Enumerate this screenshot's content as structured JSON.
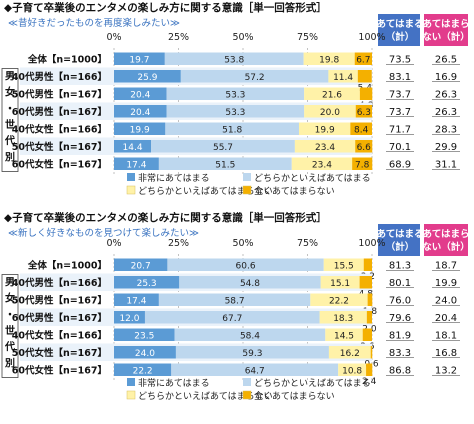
{
  "colors": {
    "very": "#5b9bd5",
    "somewhat": "#bdd7ee",
    "somewhat_not": "#fff2a8",
    "not_at_all": "#f4b000",
    "hdr_blue": "#4472c4",
    "hdr_pink": "#e23c8c",
    "band_alt": "#eaf2fa"
  },
  "chart_data": [
    {
      "type": "bar",
      "orientation": "horizontal",
      "stacked": true,
      "title": "◆子育て卒業後のエンタメの楽しみ方に関する意識［単一回答形式］",
      "subtitle": "≪昔好きだったものを再度楽しみたい≫",
      "x_ticks": [
        "0%",
        "25%",
        "50%",
        "75%",
        "100%"
      ],
      "xlim": [
        0,
        100
      ],
      "group_label": "男女・世代別",
      "categories": [
        "全体【n=1000】",
        "40代男性【n=166】",
        "50代男性【n=167】",
        "60代男性【n=167】",
        "40代女性【n=166】",
        "50代女性【n=167】",
        "60代女性【n=167】"
      ],
      "series": [
        {
          "name": "非常にあてはまる",
          "values": [
            19.7,
            25.9,
            20.4,
            20.4,
            19.9,
            14.4,
            17.4
          ]
        },
        {
          "name": "どちらかといえばあてはまる",
          "values": [
            53.8,
            57.2,
            53.3,
            53.3,
            51.8,
            55.7,
            51.5
          ]
        },
        {
          "name": "どちらかといえばあてはまらない",
          "values": [
            19.8,
            11.4,
            21.6,
            20.0,
            19.9,
            23.4,
            23.4
          ]
        },
        {
          "name": "全くあてはまらない",
          "values": [
            6.7,
            5.4,
            4.8,
            6.3,
            8.4,
            6.6,
            7.8
          ]
        }
      ],
      "sum_headers": [
        "あてはまる（計）",
        "あてはまらない（計）"
      ],
      "sum_pos": [
        73.5,
        83.1,
        73.7,
        73.7,
        71.7,
        70.1,
        68.9
      ],
      "sum_neg": [
        26.5,
        16.9,
        26.3,
        26.3,
        28.3,
        29.9,
        31.1
      ]
    },
    {
      "type": "bar",
      "orientation": "horizontal",
      "stacked": true,
      "title": "◆子育て卒業後のエンタメの楽しみ方に関する意識［単一回答形式］",
      "subtitle": "≪新しく好きなものを見つけて楽しみたい≫",
      "x_ticks": [
        "0%",
        "25%",
        "50%",
        "75%",
        "100%"
      ],
      "xlim": [
        0,
        100
      ],
      "group_label": "男女・世代別",
      "categories": [
        "全体【n=1000】",
        "40代男性【n=166】",
        "50代男性【n=167】",
        "60代男性【n=167】",
        "40代女性【n=166】",
        "50代女性【n=167】",
        "60代女性【n=167】"
      ],
      "series": [
        {
          "name": "非常にあてはまる",
          "values": [
            20.7,
            25.3,
            17.4,
            12.0,
            23.5,
            24.0,
            22.2
          ]
        },
        {
          "name": "どちらかといえばあてはまる",
          "values": [
            60.6,
            54.8,
            58.7,
            67.7,
            58.4,
            59.3,
            64.7
          ]
        },
        {
          "name": "どちらかといえばあてはまらない",
          "values": [
            15.5,
            15.1,
            22.2,
            18.3,
            14.5,
            16.2,
            10.8
          ]
        },
        {
          "name": "全くあてはまらない",
          "values": [
            3.2,
            4.8,
            1.8,
            2.0,
            3.6,
            0.6,
            2.4
          ]
        }
      ],
      "sum_headers": [
        "あてはまる（計）",
        "あてはまらない（計）"
      ],
      "sum_pos": [
        81.3,
        80.1,
        76.0,
        79.6,
        81.9,
        83.3,
        86.8
      ],
      "sum_neg": [
        18.7,
        19.9,
        24.0,
        20.4,
        18.1,
        16.8,
        13.2
      ]
    }
  ]
}
